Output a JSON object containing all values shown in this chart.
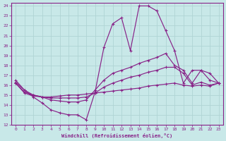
{
  "xlabel": "Windchill (Refroidissement éolien,°C)",
  "bg_color": "#c8e8e8",
  "line_color": "#882288",
  "grid_color": "#b0d4d4",
  "xlim": [
    -0.5,
    23.5
  ],
  "ylim": [
    12,
    24.3
  ],
  "xticks": [
    0,
    1,
    2,
    3,
    4,
    5,
    6,
    7,
    8,
    9,
    10,
    11,
    12,
    13,
    14,
    15,
    16,
    17,
    18,
    19,
    20,
    21,
    22,
    23
  ],
  "yticks": [
    12,
    13,
    14,
    15,
    16,
    17,
    18,
    19,
    20,
    21,
    22,
    23,
    24
  ],
  "lines": [
    {
      "x": [
        0,
        1,
        2,
        3,
        4,
        5,
        6,
        7,
        8,
        9,
        10,
        11,
        12,
        13,
        14,
        15,
        16,
        17,
        18,
        19,
        20,
        21,
        22,
        23
      ],
      "y": [
        16.5,
        15.5,
        14.8,
        14.2,
        13.5,
        13.2,
        13.0,
        13.0,
        12.5,
        15.3,
        19.8,
        22.2,
        22.8,
        19.5,
        24.0,
        24.0,
        23.5,
        21.5,
        19.5,
        16.2,
        17.5,
        17.5,
        16.5,
        16.2
      ]
    },
    {
      "x": [
        0,
        1,
        2,
        3,
        4,
        5,
        6,
        7,
        8,
        9,
        10,
        11,
        12,
        13,
        14,
        15,
        16,
        17,
        18,
        19,
        20,
        21,
        22,
        23
      ],
      "y": [
        16.3,
        15.5,
        15.0,
        14.8,
        14.5,
        14.4,
        14.3,
        14.3,
        14.5,
        15.5,
        16.5,
        17.2,
        17.5,
        17.8,
        18.2,
        18.5,
        18.8,
        19.2,
        18.0,
        17.5,
        16.2,
        17.5,
        17.2,
        16.2
      ]
    },
    {
      "x": [
        0,
        1,
        2,
        3,
        4,
        5,
        6,
        7,
        8,
        9,
        10,
        11,
        12,
        13,
        14,
        15,
        16,
        17,
        18,
        19,
        20,
        21,
        22,
        23
      ],
      "y": [
        16.2,
        15.3,
        15.0,
        14.8,
        14.7,
        14.7,
        14.7,
        14.7,
        14.8,
        15.2,
        15.8,
        16.2,
        16.5,
        16.8,
        17.0,
        17.3,
        17.5,
        17.8,
        17.8,
        17.2,
        16.0,
        16.3,
        16.0,
        16.2
      ]
    },
    {
      "x": [
        0,
        1,
        2,
        3,
        4,
        5,
        6,
        7,
        8,
        9,
        10,
        11,
        12,
        13,
        14,
        15,
        16,
        17,
        18,
        19,
        20,
        21,
        22,
        23
      ],
      "y": [
        16.2,
        15.2,
        14.9,
        14.8,
        14.8,
        14.9,
        15.0,
        15.0,
        15.1,
        15.2,
        15.3,
        15.4,
        15.5,
        15.6,
        15.7,
        15.9,
        16.0,
        16.1,
        16.2,
        16.0,
        15.9,
        16.0,
        15.9,
        16.2
      ]
    }
  ]
}
